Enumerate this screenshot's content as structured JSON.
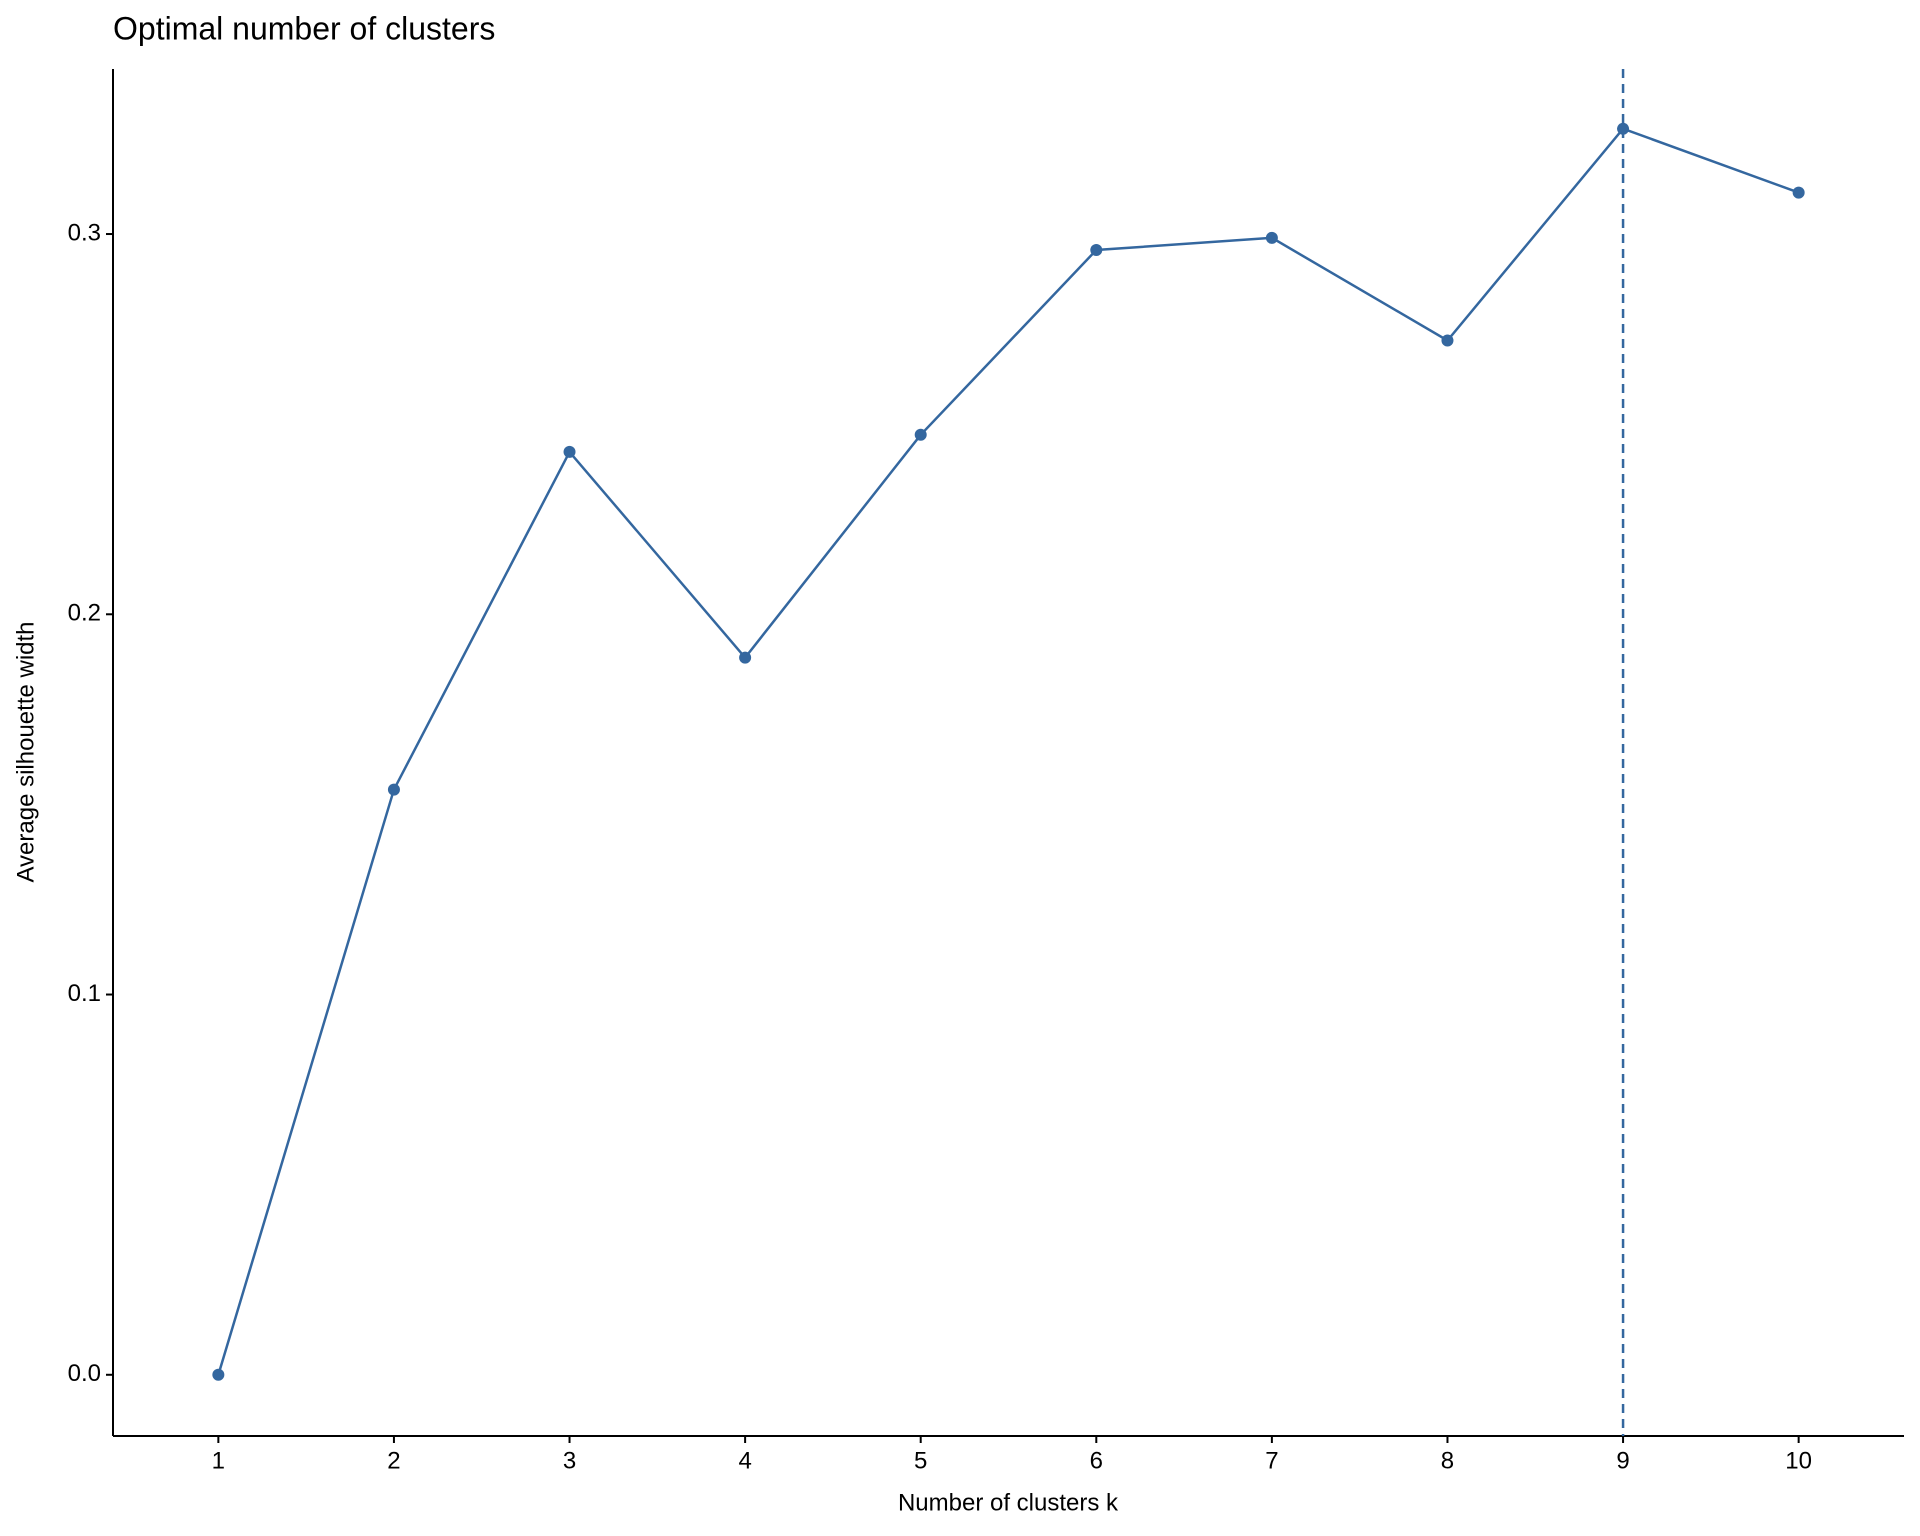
{
  "chart_data": {
    "type": "line",
    "title": "Optimal number of clusters",
    "x_label": "Number of clusters k",
    "y_label": "Average silhouette width",
    "x": [
      1,
      2,
      3,
      4,
      5,
      6,
      7,
      8,
      9,
      10
    ],
    "series": [
      {
        "name": "silhouette",
        "color": "#34679f",
        "values": [
          0,
          0.1539,
          0.2427,
          0.1886,
          0.2472,
          0.2958,
          0.299,
          0.272,
          0.3277,
          0.3109
        ]
      }
    ],
    "vline": 9,
    "xlim": [
      0.4,
      10.6
    ],
    "xticks": [
      1,
      2,
      3,
      4,
      5,
      6,
      7,
      8,
      9,
      10
    ],
    "ylim": [
      -0.0161,
      0.3434
    ],
    "yticks": [
      {
        "value": 0,
        "label": "0.0"
      },
      {
        "value": 0.1,
        "label": "0.1"
      },
      {
        "value": 0.2,
        "label": "0.2"
      },
      {
        "value": 0.3,
        "label": "0.3"
      }
    ],
    "grid": false
  }
}
